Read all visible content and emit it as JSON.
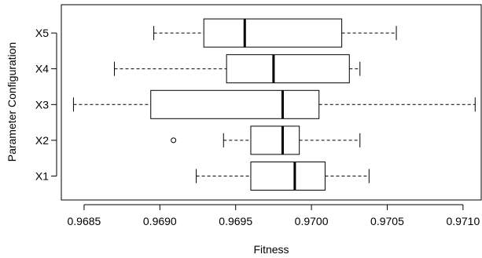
{
  "chart_data": {
    "type": "boxplot",
    "orientation": "horizontal",
    "xlabel": "Fitness",
    "ylabel": "Parameter Configuration",
    "xlim": [
      0.96835,
      0.97112
    ],
    "x_ticks": [
      {
        "value": 0.9685,
        "label": "0.9685"
      },
      {
        "value": 0.969,
        "label": "0.9690"
      },
      {
        "value": 0.9695,
        "label": "0.9695"
      },
      {
        "value": 0.97,
        "label": "0.9700"
      },
      {
        "value": 0.9705,
        "label": "0.9705"
      },
      {
        "value": 0.971,
        "label": "0.9710"
      }
    ],
    "categories": [
      "X1",
      "X2",
      "X3",
      "X4",
      "X5"
    ],
    "series": [
      {
        "label": "X1",
        "whisker_low": 0.96924,
        "q1": 0.9696,
        "median": 0.96989,
        "q3": 0.97009,
        "whisker_high": 0.97038,
        "outliers": []
      },
      {
        "label": "X2",
        "whisker_low": 0.96942,
        "q1": 0.9696,
        "median": 0.96981,
        "q3": 0.96992,
        "whisker_high": 0.97032,
        "outliers": [
          0.96909
        ]
      },
      {
        "label": "X3",
        "whisker_low": 0.96843,
        "q1": 0.96894,
        "median": 0.96981,
        "q3": 0.97005,
        "whisker_high": 0.97108,
        "outliers": []
      },
      {
        "label": "X4",
        "whisker_low": 0.9687,
        "q1": 0.96944,
        "median": 0.96975,
        "q3": 0.97025,
        "whisker_high": 0.97032,
        "outliers": []
      },
      {
        "label": "X5",
        "whisker_low": 0.96896,
        "q1": 0.96929,
        "median": 0.96956,
        "q3": 0.9702,
        "whisker_high": 0.97056,
        "outliers": []
      }
    ],
    "grid": false,
    "legend": "none"
  }
}
